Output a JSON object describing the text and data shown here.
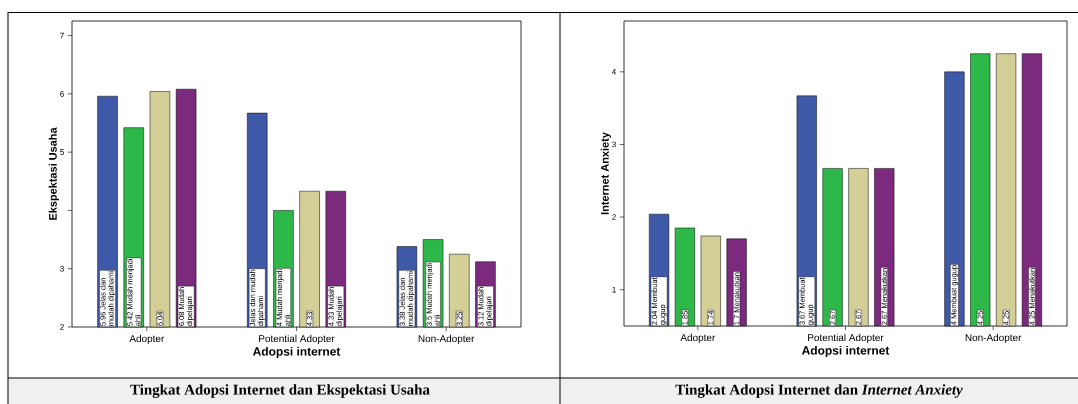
{
  "chart_data": [
    {
      "type": "bar",
      "title": "Tingkat Adopsi Internet dan Ekspektasi Usaha",
      "xlabel": "Adopsi internet",
      "ylabel": "Ekspektasi Usaha",
      "categories": [
        "Adopter",
        "Potential Adopter",
        "Non-Adopter"
      ],
      "ylim": [
        2,
        7.25
      ],
      "yticks": [
        2,
        3,
        {
          "value": 4,
          "label": null
        },
        5,
        6,
        7
      ],
      "series": [
        {
          "name": "Jelas dan mudah dipahami",
          "color": "#3f59a9",
          "values": [
            5.96,
            5.67,
            3.38
          ],
          "value_labels": [
            "5.96",
            null,
            "3.38"
          ]
        },
        {
          "name": "Mudah menjadi ahli",
          "color": "#2fb84a",
          "values": [
            5.42,
            4,
            3.5
          ],
          "value_labels": [
            "5.42",
            "4",
            "3.5"
          ]
        },
        {
          "color": "#d4cf96",
          "values": [
            6.04,
            4.33,
            3.25
          ],
          "value_labels": [
            "6.04",
            "4.33",
            "3.25"
          ]
        },
        {
          "name": "Mudah dipelajari",
          "color": "#7b2a7e",
          "values": [
            6.08,
            4.33,
            3.12
          ],
          "value_labels": [
            "6.08",
            "4.33",
            "3.12"
          ]
        }
      ]
    },
    {
      "type": "bar",
      "title": "Tingkat Adopsi Internet dan *Internet Anxiety*",
      "xlabel": "Adopsi internet",
      "ylabel": "Internet Anxiety",
      "categories": [
        "Adopter",
        "Potential Adopter",
        "Non-Adopter"
      ],
      "ylim": [
        0.5,
        4.7
      ],
      "yticks": [
        1,
        2,
        3,
        4
      ],
      "series": [
        {
          "name": "Membuat gugup",
          "color": "#3f59a9",
          "values": [
            2.04,
            3.67,
            4
          ],
          "value_labels": [
            "2.04",
            "3.67",
            "4"
          ]
        },
        {
          "color": "#2fb84a",
          "values": [
            1.85,
            2.67,
            4.25
          ],
          "value_labels": [
            "1.85",
            "2.67",
            "4.25"
          ]
        },
        {
          "color": "#d4cf96",
          "values": [
            1.74,
            2.67,
            4.25
          ],
          "value_labels": [
            "1.74",
            "2.67",
            "4.25"
          ]
        },
        {
          "name": "Menakutkan",
          "color": "#7b2a7e",
          "values": [
            1.7,
            2.67,
            4.25
          ],
          "value_labels": [
            "1.7",
            "2.67",
            "4.25"
          ]
        }
      ]
    }
  ]
}
